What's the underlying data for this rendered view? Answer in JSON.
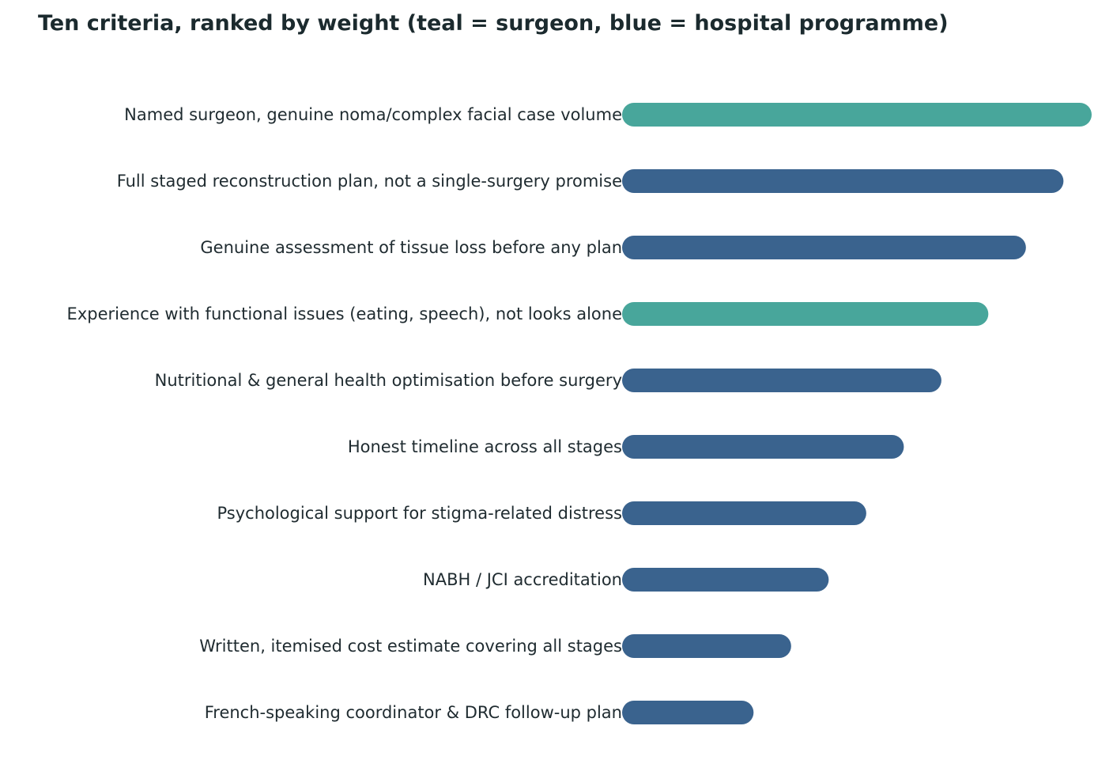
{
  "chart_data": {
    "type": "bar",
    "orientation": "horizontal",
    "title": "Ten criteria, ranked by weight (teal = surgeon, blue = hospital programme)",
    "xlabel": "",
    "ylabel": "",
    "grid": false,
    "xlim": [
      0,
      100
    ],
    "categories": [
      "Named surgeon, genuine noma/complex facial case volume",
      "Full staged reconstruction plan, not a single-surgery promise",
      "Genuine assessment of tissue loss before any plan",
      "Experience with functional issues (eating, speech), not looks alone",
      "Nutritional & general health optimisation before surgery",
      "Honest timeline across all stages",
      "Psychological support for stigma-related distress",
      "NABH / JCI accreditation",
      "Written, itemised cost estimate covering all stages",
      "French-speaking coordinator & DRC follow-up plan"
    ],
    "values": [
      100,
      94,
      86,
      78,
      68,
      60,
      52,
      44,
      36,
      28
    ],
    "groups": [
      "surgeon",
      "hospital programme",
      "hospital programme",
      "surgeon",
      "hospital programme",
      "hospital programme",
      "hospital programme",
      "hospital programme",
      "hospital programme",
      "hospital programme"
    ],
    "colors": {
      "surgeon": "#48a69b",
      "hospital programme": "#3a638e"
    }
  }
}
